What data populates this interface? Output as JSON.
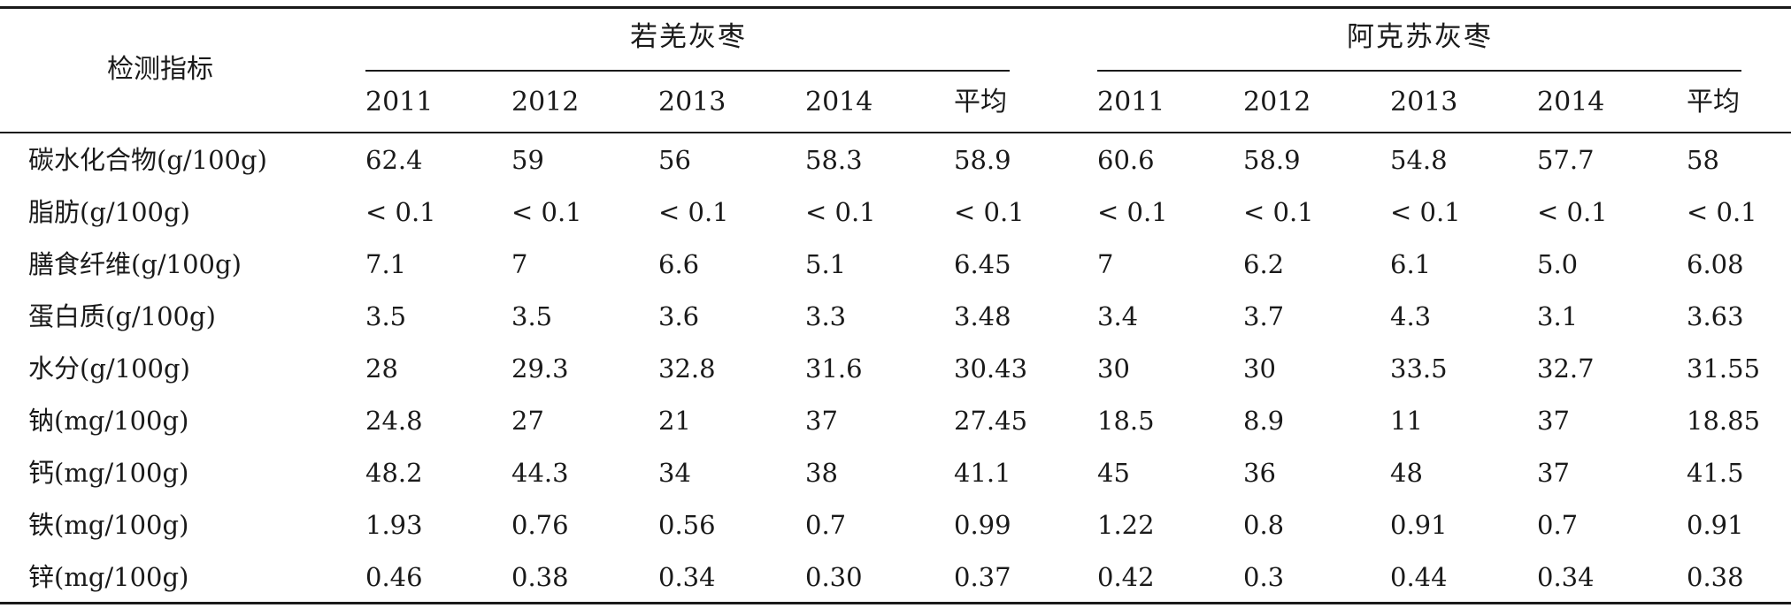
{
  "table": {
    "indicator_header": "检测指标",
    "groups": [
      {
        "title": "若羌灰枣",
        "years": [
          "2011",
          "2012",
          "2013",
          "2014",
          "平均"
        ]
      },
      {
        "title": "阿克苏灰枣",
        "years": [
          "2011",
          "2012",
          "2013",
          "2014",
          "平均"
        ]
      }
    ],
    "rows": [
      {
        "label": "碳水化合物(g/100g)",
        "values": [
          "62.4",
          "59",
          "56",
          "58.3",
          "58.9",
          "60.6",
          "58.9",
          "54.8",
          "57.7",
          "58"
        ]
      },
      {
        "label": "脂肪(g/100g)",
        "values": [
          "< 0.1",
          "< 0.1",
          "< 0.1",
          "< 0.1",
          "< 0.1",
          "< 0.1",
          "< 0.1",
          "< 0.1",
          "< 0.1",
          "< 0.1"
        ]
      },
      {
        "label": "膳食纤维(g/100g)",
        "values": [
          "7.1",
          "7",
          "6.6",
          "5.1",
          "6.45",
          "7",
          "6.2",
          "6.1",
          "5.0",
          "6.08"
        ]
      },
      {
        "label": "蛋白质(g/100g)",
        "values": [
          "3.5",
          "3.5",
          "3.6",
          "3.3",
          "3.48",
          "3.4",
          "3.7",
          "4.3",
          "3.1",
          "3.63"
        ]
      },
      {
        "label": "水分(g/100g)",
        "values": [
          "28",
          "29.3",
          "32.8",
          "31.6",
          "30.43",
          "30",
          "30",
          "33.5",
          "32.7",
          "31.55"
        ]
      },
      {
        "label": "钠(mg/100g)",
        "values": [
          "24.8",
          "27",
          "21",
          "37",
          "27.45",
          "18.5",
          "8.9",
          "11",
          "37",
          "18.85"
        ]
      },
      {
        "label": "钙(mg/100g)",
        "values": [
          "48.2",
          "44.3",
          "34",
          "38",
          "41.1",
          "45",
          "36",
          "48",
          "37",
          "41.5"
        ]
      },
      {
        "label": "铁(mg/100g)",
        "values": [
          "1.93",
          "0.76",
          "0.56",
          "0.7",
          "0.99",
          "1.22",
          "0.8",
          "0.91",
          "0.7",
          "0.91"
        ]
      },
      {
        "label": "锌(mg/100g)",
        "values": [
          "0.46",
          "0.38",
          "0.34",
          "0.30",
          "0.37",
          "0.42",
          "0.3",
          "0.44",
          "0.34",
          "0.38"
        ]
      }
    ]
  }
}
